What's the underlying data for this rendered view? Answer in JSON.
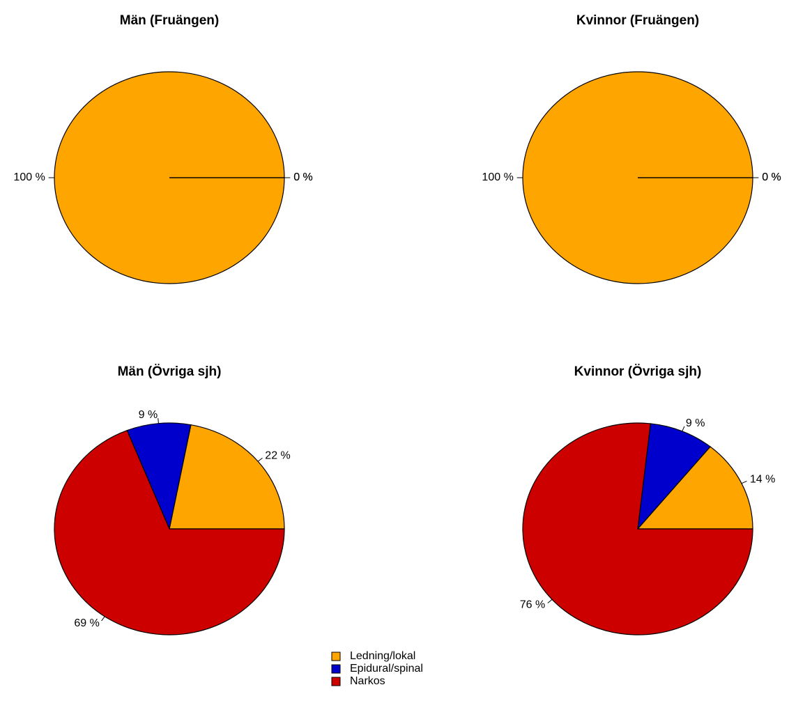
{
  "chart_data": [
    {
      "type": "pie",
      "title": "Män (Fruängen)",
      "values": [
        100,
        0,
        0
      ],
      "value_labels": [
        "100 %",
        "0 %",
        "0 %"
      ]
    },
    {
      "type": "pie",
      "title": "Kvinnor (Fruängen)",
      "values": [
        100,
        0,
        0
      ],
      "value_labels": [
        "100 %",
        "0 %",
        "0 %"
      ]
    },
    {
      "type": "pie",
      "title": "Män (Övriga sjh)",
      "values": [
        22,
        9,
        69
      ],
      "value_labels": [
        "22 %",
        "9 %",
        "69 %"
      ]
    },
    {
      "type": "pie",
      "title": "Kvinnor (Övriga sjh)",
      "values": [
        14,
        9,
        76
      ],
      "value_labels": [
        "14 %",
        "9 %",
        "76 %"
      ]
    }
  ],
  "legend": {
    "labels": [
      "Ledning/lokal",
      "Epidural/spinal",
      "Narkos"
    ],
    "colors": [
      "#ffa500",
      "#0000cd",
      "#cd0000"
    ]
  }
}
